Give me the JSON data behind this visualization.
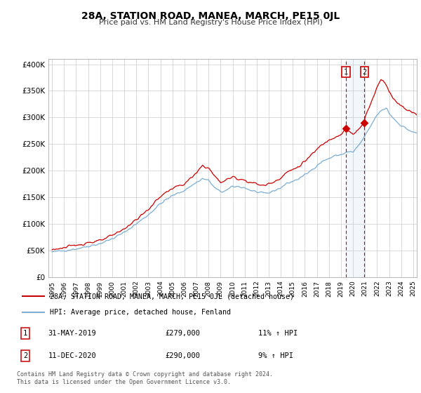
{
  "title": "28A, STATION ROAD, MANEA, MARCH, PE15 0JL",
  "subtitle": "Price paid vs. HM Land Registry's House Price Index (HPI)",
  "legend_line1": "28A, STATION ROAD, MANEA, MARCH, PE15 0JL (detached house)",
  "legend_line2": "HPI: Average price, detached house, Fenland",
  "annotation1_num": "1",
  "annotation1_date": "31-MAY-2019",
  "annotation1_price": "£279,000",
  "annotation1_hpi": "11% ↑ HPI",
  "annotation2_num": "2",
  "annotation2_date": "11-DEC-2020",
  "annotation2_price": "£290,000",
  "annotation2_hpi": "9% ↑ HPI",
  "footer": "Contains HM Land Registry data © Crown copyright and database right 2024.\nThis data is licensed under the Open Government Licence v3.0.",
  "price_color": "#cc0000",
  "hpi_color": "#7aaed6",
  "vline_color": "#cc0000",
  "shade_color": "#ddeeff",
  "ylim": [
    0,
    410000
  ],
  "yticks": [
    0,
    50000,
    100000,
    150000,
    200000,
    250000,
    300000,
    350000,
    400000
  ],
  "xlim_start": 1994.7,
  "xlim_end": 2025.3,
  "transaction1_x": 2019.41,
  "transaction1_y": 279000,
  "transaction2_x": 2020.95,
  "transaction2_y": 290000,
  "bg_color": "#ffffff",
  "grid_color": "#cccccc"
}
